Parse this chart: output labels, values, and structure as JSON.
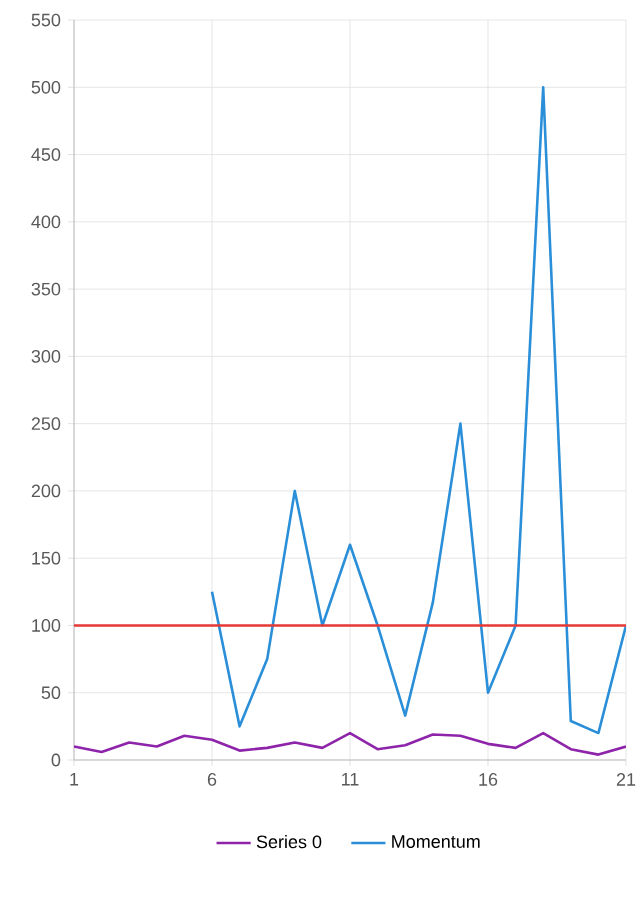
{
  "chart_data": {
    "type": "line",
    "x": [
      1,
      2,
      3,
      4,
      5,
      6,
      7,
      8,
      9,
      10,
      11,
      12,
      13,
      14,
      15,
      16,
      17,
      18,
      19,
      20,
      21
    ],
    "series": [
      {
        "name": "Series 0",
        "color": "#8e24aa",
        "values": [
          10,
          6,
          13,
          10,
          18,
          15,
          7,
          9,
          13,
          9,
          20,
          8,
          11,
          19,
          18,
          12,
          9,
          20,
          8,
          4,
          10
        ]
      },
      {
        "name": "Momentum",
        "color": "#2a8fd8",
        "x": [
          6,
          7,
          8,
          9,
          10,
          11,
          12,
          13,
          14,
          15,
          16,
          17,
          18,
          19,
          20,
          21
        ],
        "values": [
          125,
          25,
          75,
          200,
          100,
          160,
          100,
          33,
          117,
          250,
          50,
          100,
          500,
          29,
          20,
          100
        ]
      }
    ],
    "xlim": [
      1,
      21
    ],
    "xticks": [
      1,
      6,
      11,
      16,
      21
    ],
    "ylim": [
      0,
      550
    ],
    "yticks": [
      0,
      50,
      100,
      150,
      200,
      250,
      300,
      350,
      400,
      450,
      500,
      550
    ],
    "ref_lines": [
      {
        "axis": "y",
        "value": 100,
        "color": "#e53935"
      }
    ],
    "grid": true,
    "legend": "bottom"
  }
}
